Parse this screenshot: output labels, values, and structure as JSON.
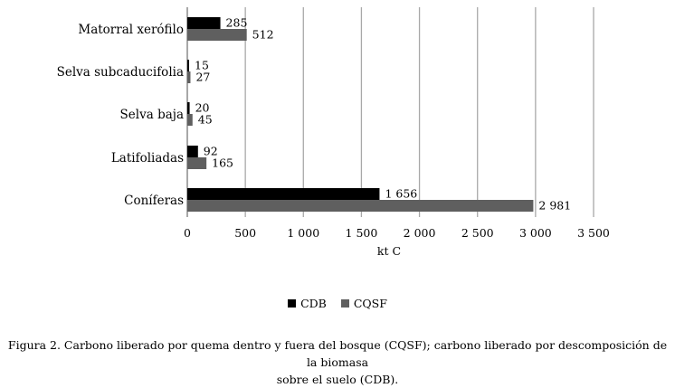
{
  "chart_data": {
    "type": "bar",
    "orientation": "horizontal",
    "categories": [
      "Matorral xerófilo",
      "Selva subcaducifolia",
      "Selva baja",
      "Latifoliadas",
      "Coníferas"
    ],
    "series": [
      {
        "name": "CDB",
        "color": "#000000",
        "values": [
          285,
          15,
          20,
          92,
          1656
        ],
        "labels": [
          "285",
          "15",
          "20",
          "92",
          "1 656"
        ]
      },
      {
        "name": "CQSF",
        "color": "#5f5f5f",
        "values": [
          512,
          27,
          45,
          165,
          2981
        ],
        "labels": [
          "512",
          "27",
          "45",
          "165",
          "2 981"
        ]
      }
    ],
    "xlim": [
      0,
      3500
    ],
    "xticks": [
      0,
      500,
      1000,
      1500,
      2000,
      2500,
      3000,
      3500
    ],
    "xtick_labels": [
      "0",
      "500",
      "1 000",
      "1 500",
      "2 000",
      "2 500",
      "3 000",
      "3 500"
    ],
    "xlabel": "kt C",
    "ylabel": "",
    "grid": "vertical",
    "legend_position": "bottom"
  },
  "legend": [
    {
      "label": "CDB",
      "color": "#000000"
    },
    {
      "label": "CQSF",
      "color": "#5f5f5f"
    }
  ],
  "caption": {
    "line1": "Figura 2. Carbono liberado por quema dentro y fuera del bosque (CQSF); carbono liberado por descomposición de la biomasa",
    "line2": "sobre el suelo (CDB)."
  }
}
